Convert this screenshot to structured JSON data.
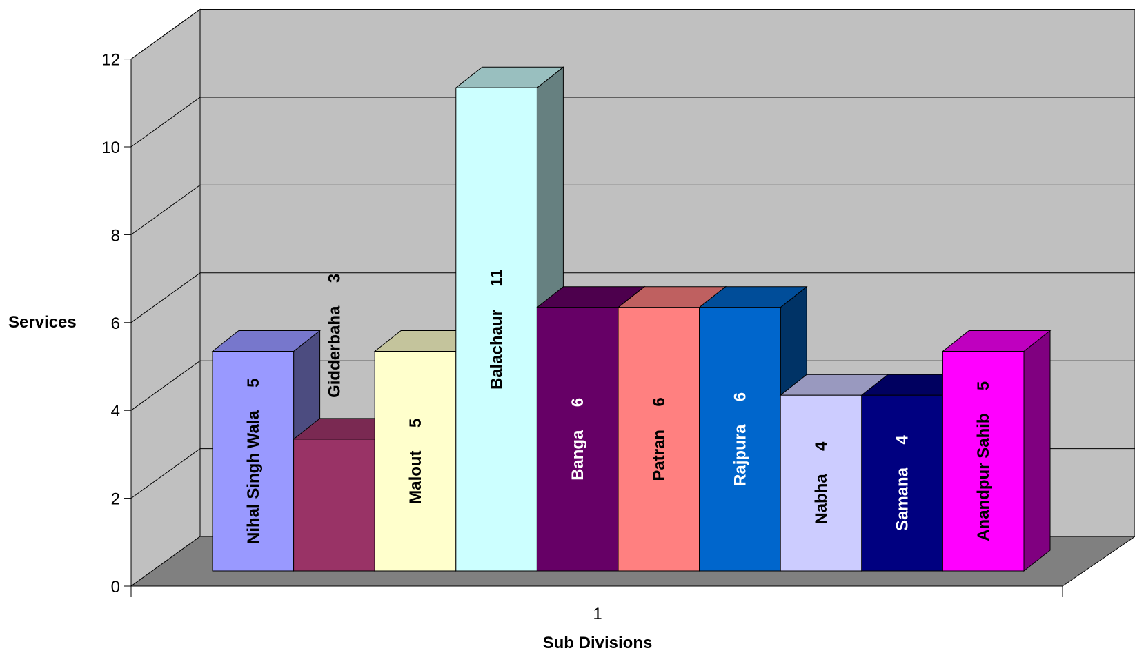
{
  "chart_data": {
    "type": "bar",
    "style": "3d-clustered-column",
    "categories": [
      "1"
    ],
    "xlabel": "Sub Divisions",
    "ylabel": "Services",
    "ylim": [
      0,
      12
    ],
    "yticks": [
      0,
      2,
      4,
      6,
      8,
      10,
      12
    ],
    "grid": true,
    "legend": "none",
    "wall_color": "#c0c0c0",
    "floor_color": "#808080",
    "series": [
      {
        "name": "Nihal Singh Wala",
        "value": 5,
        "label": "Nihal Singh Wala     5",
        "front": "#9999ff",
        "top": "#7777cc",
        "side": "#4c4c80",
        "text_color": "#000000"
      },
      {
        "name": "Gidderbaha",
        "value": 3,
        "label": "Gidderbaha     3",
        "front": "#993366",
        "top": "#7a2952",
        "side": "#4d1a33",
        "text_color": "#000000"
      },
      {
        "name": "Malout",
        "value": 5,
        "label": "Malout     5",
        "front": "#ffffcc",
        "top": "#c4c49c",
        "side": "#808066",
        "text_color": "#000000"
      },
      {
        "name": "Balachaur",
        "value": 11,
        "label": "Balachaur     11",
        "front": "#ccffff",
        "top": "#99bfbf",
        "side": "#668080",
        "text_color": "#000000"
      },
      {
        "name": "Banga",
        "value": 6,
        "label": "Banga     6",
        "front": "#660066",
        "top": "#4d004d",
        "side": "#330033",
        "text_color": "#ffffff"
      },
      {
        "name": "Patran",
        "value": 6,
        "label": "Patran     6",
        "front": "#ff8080",
        "top": "#bf6060",
        "side": "#804040",
        "text_color": "#000000"
      },
      {
        "name": "Rajpura",
        "value": 6,
        "label": "Rajpura     6",
        "front": "#0066cc",
        "top": "#004d99",
        "side": "#003366",
        "text_color": "#ffffff"
      },
      {
        "name": "Nabha",
        "value": 4,
        "label": "Nabha     4",
        "front": "#ccccff",
        "top": "#9999bf",
        "side": "#666680",
        "text_color": "#000000"
      },
      {
        "name": "Samana",
        "value": 4,
        "label": "Samana     4",
        "front": "#000080",
        "top": "#000060",
        "side": "#000040",
        "text_color": "#ffffff"
      },
      {
        "name": "Anandpur Sahib",
        "value": 5,
        "label": "Anandpur Sahib     5",
        "front": "#ff00ff",
        "top": "#bf00bf",
        "side": "#800080",
        "text_color": "#000000"
      }
    ]
  }
}
